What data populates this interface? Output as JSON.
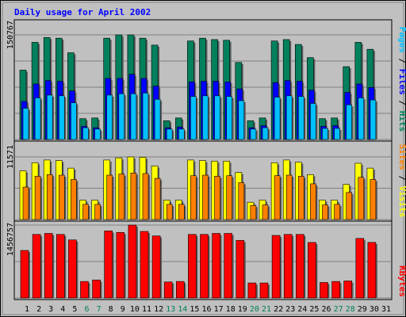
{
  "chart_data": [
    {
      "type": "bar",
      "title": "Daily usage for April 2002",
      "ymax_label": "150767",
      "categories": [
        "1",
        "2",
        "3",
        "4",
        "5",
        "6",
        "7",
        "8",
        "9",
        "10",
        "11",
        "12",
        "13",
        "14",
        "15",
        "16",
        "17",
        "18",
        "19",
        "20",
        "21",
        "22",
        "23",
        "24",
        "25",
        "26",
        "27",
        "28",
        "29",
        "30",
        "31"
      ],
      "weekend_days": [
        "6",
        "7",
        "13",
        "14",
        "20",
        "21",
        "27",
        "28"
      ],
      "series": [
        {
          "name": "Hits",
          "color": "#00805c",
          "values": [
            100000,
            140000,
            147000,
            146000,
            125000,
            30000,
            31000,
            146000,
            150767,
            150767,
            146000,
            136000,
            27000,
            31000,
            142000,
            146000,
            144000,
            143000,
            111000,
            27000,
            31000,
            142000,
            144000,
            137000,
            118000,
            30000,
            31000,
            105000,
            140000,
            130000,
            0
          ]
        },
        {
          "name": "Files",
          "color": "#0000ff",
          "values": [
            55000,
            80000,
            85000,
            84000,
            70000,
            19000,
            17000,
            88000,
            88000,
            94000,
            88000,
            77000,
            17000,
            18000,
            83000,
            84000,
            84000,
            83000,
            73000,
            17000,
            20000,
            82000,
            85000,
            84000,
            71000,
            19000,
            20000,
            68000,
            80000,
            75000,
            0
          ]
        },
        {
          "name": "Pages",
          "color": "#00c0ff",
          "values": [
            45000,
            60000,
            64000,
            63000,
            53000,
            17000,
            15000,
            64000,
            66000,
            66000,
            67000,
            58000,
            15000,
            15000,
            62000,
            63000,
            63000,
            62000,
            56000,
            15000,
            17000,
            61000,
            63000,
            62000,
            52000,
            16000,
            16000,
            50000,
            60000,
            57000,
            0
          ]
        }
      ],
      "legend": [
        "Pages",
        "Files",
        "Hits"
      ]
    },
    {
      "type": "bar",
      "ymax_label": "11571",
      "series": [
        {
          "name": "Visits",
          "color": "#ffff00",
          "values": [
            9000,
            10500,
            11000,
            10900,
            9500,
            3600,
            3600,
            11000,
            11400,
            11571,
            11500,
            9900,
            3600,
            3600,
            11000,
            10900,
            10800,
            10800,
            8700,
            3200,
            3600,
            10500,
            11000,
            10600,
            8300,
            3600,
            3600,
            6500,
            10400,
            9500,
            0
          ]
        },
        {
          "name": "Sites",
          "color": "#ff8000",
          "values": [
            6000,
            8000,
            8300,
            8200,
            7400,
            2800,
            2800,
            8200,
            8400,
            8600,
            8500,
            7600,
            2800,
            2800,
            8100,
            8200,
            8000,
            8100,
            6800,
            2600,
            2700,
            8100,
            8200,
            8000,
            6600,
            2700,
            2800,
            5000,
            7800,
            7400,
            0
          ]
        }
      ],
      "legend": [
        "Sites",
        "Visits"
      ]
    },
    {
      "type": "bar",
      "ymax_label": "1456757",
      "series": [
        {
          "name": "KBytes",
          "color": "#ff0000",
          "values": [
            950000,
            1270000,
            1290000,
            1270000,
            1160000,
            330000,
            360000,
            1340000,
            1310000,
            1456757,
            1330000,
            1240000,
            320000,
            330000,
            1270000,
            1270000,
            1290000,
            1290000,
            1150000,
            300000,
            300000,
            1250000,
            1270000,
            1270000,
            1110000,
            310000,
            330000,
            340000,
            1190000,
            1110000,
            0
          ]
        }
      ],
      "legend": [
        "KBytes"
      ]
    }
  ]
}
